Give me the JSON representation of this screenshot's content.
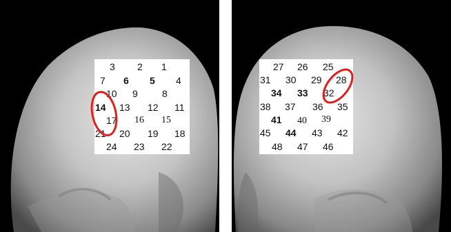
{
  "left_panel": {
    "numbers": [
      {
        "t": "3"
      },
      {
        "t": "2"
      },
      {
        "t": "1"
      },
      {
        "t": "7"
      },
      {
        "t": "6"
      },
      {
        "t": "5"
      },
      {
        "t": "4"
      },
      {
        "t": "10"
      },
      {
        "t": "9"
      },
      {
        "t": "8"
      },
      {
        "t": "14"
      },
      {
        "t": "13"
      },
      {
        "t": "12"
      },
      {
        "t": "11"
      },
      {
        "t": "17"
      },
      {
        "t": "16"
      },
      {
        "t": "15"
      },
      {
        "t": "21"
      },
      {
        "t": "20"
      },
      {
        "t": "19"
      },
      {
        "t": "18"
      },
      {
        "t": "24"
      },
      {
        "t": "23"
      },
      {
        "t": "22"
      }
    ],
    "highlight_color": "#e01e1e"
  },
  "right_panel": {
    "numbers": [
      {
        "t": "27"
      },
      {
        "t": "26"
      },
      {
        "t": "25"
      },
      {
        "t": "31"
      },
      {
        "t": "30"
      },
      {
        "t": "29"
      },
      {
        "t": "28"
      },
      {
        "t": "34"
      },
      {
        "t": "33"
      },
      {
        "t": "32"
      },
      {
        "t": "38"
      },
      {
        "t": "37"
      },
      {
        "t": "36"
      },
      {
        "t": "35"
      },
      {
        "t": "41"
      },
      {
        "t": "40"
      },
      {
        "t": "39"
      },
      {
        "t": "45"
      },
      {
        "t": "44"
      },
      {
        "t": "43"
      },
      {
        "t": "42"
      },
      {
        "t": "48"
      },
      {
        "t": "47"
      },
      {
        "t": "46"
      }
    ],
    "highlight_color": "#e01e1e"
  }
}
